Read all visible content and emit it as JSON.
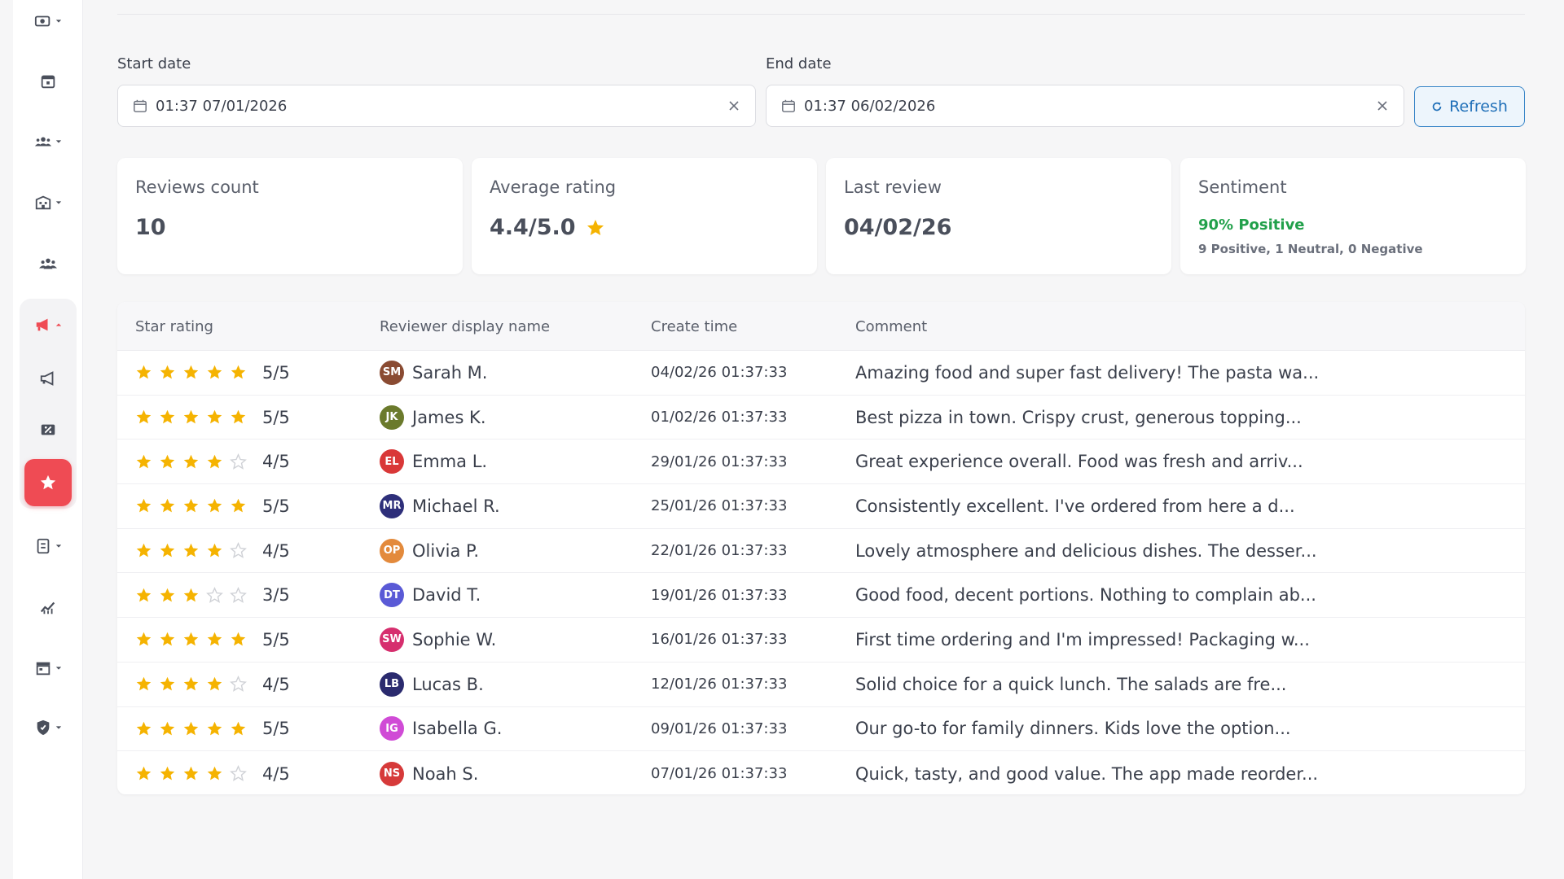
{
  "sidebar": {
    "items": [
      {
        "icon": "money-icon",
        "caret": true
      },
      {
        "icon": "calendar-icon",
        "caret": false
      },
      {
        "icon": "customers-icon",
        "caret": true
      },
      {
        "icon": "building-icon",
        "caret": true
      },
      {
        "icon": "team-icon",
        "caret": false
      },
      {
        "icon": "megaphone-icon",
        "caret": true
      },
      {
        "icon": "announcement-icon",
        "caret": false
      },
      {
        "icon": "discount-icon",
        "caret": false
      },
      {
        "icon": "star-icon",
        "caret": false,
        "active": true
      },
      {
        "icon": "document-icon",
        "caret": true
      },
      {
        "icon": "analytics-icon",
        "caret": false
      },
      {
        "icon": "store-icon",
        "caret": true
      },
      {
        "icon": "shield-icon",
        "caret": true
      }
    ],
    "active_color": "#ef4b54"
  },
  "filters": {
    "start_label": "Start date",
    "start_value": "01:37 07/01/2026",
    "end_label": "End date",
    "end_value": "01:37 06/02/2026",
    "refresh_label": "Refresh"
  },
  "cards": {
    "reviews_count": {
      "label": "Reviews count",
      "value": "10"
    },
    "average_rating": {
      "label": "Average rating",
      "value": "4.4/5.0"
    },
    "last_review": {
      "label": "Last review",
      "value": "04/02/26"
    },
    "sentiment": {
      "label": "Sentiment",
      "positive": "90% Positive",
      "breakdown": "9 Positive, 1 Neutral, 0 Negative"
    }
  },
  "table": {
    "headers": {
      "rating": "Star rating",
      "reviewer": "Reviewer display name",
      "time": "Create time",
      "comment": "Comment"
    },
    "rows": [
      {
        "stars": 5,
        "rating": "5/5",
        "initials": "SM",
        "color": "#8a4b32",
        "name": "Sarah M.",
        "time": "04/02/26 01:37:33",
        "comment": "Amazing food and super fast delivery! The pasta wa..."
      },
      {
        "stars": 5,
        "rating": "5/5",
        "initials": "JK",
        "color": "#6b7a2c",
        "name": "James K.",
        "time": "01/02/26 01:37:33",
        "comment": "Best pizza in town. Crispy crust, generous topping..."
      },
      {
        "stars": 4,
        "rating": "4/5",
        "initials": "EL",
        "color": "#d93838",
        "name": "Emma L.",
        "time": "29/01/26 01:37:33",
        "comment": "Great experience overall. Food was fresh and arriv..."
      },
      {
        "stars": 5,
        "rating": "5/5",
        "initials": "MR",
        "color": "#2e2f7a",
        "name": "Michael R.",
        "time": "25/01/26 01:37:33",
        "comment": "Consistently excellent. I've ordered from here a d..."
      },
      {
        "stars": 4,
        "rating": "4/5",
        "initials": "OP",
        "color": "#e38a3c",
        "name": "Olivia P.",
        "time": "22/01/26 01:37:33",
        "comment": "Lovely atmosphere and delicious dishes. The desser..."
      },
      {
        "stars": 3,
        "rating": "3/5",
        "initials": "DT",
        "color": "#5a5ad6",
        "name": "David T.",
        "time": "19/01/26 01:37:33",
        "comment": "Good food, decent portions. Nothing to complain ab..."
      },
      {
        "stars": 5,
        "rating": "5/5",
        "initials": "SW",
        "color": "#d62f6e",
        "name": "Sophie W.",
        "time": "16/01/26 01:37:33",
        "comment": "First time ordering and I'm impressed! Packaging w..."
      },
      {
        "stars": 4,
        "rating": "4/5",
        "initials": "LB",
        "color": "#2a2a6e",
        "name": "Lucas B.",
        "time": "12/01/26 01:37:33",
        "comment": "Solid choice for a quick lunch. The salads are fre..."
      },
      {
        "stars": 5,
        "rating": "5/5",
        "initials": "IG",
        "color": "#d04bd6",
        "name": "Isabella G.",
        "time": "09/01/26 01:37:33",
        "comment": "Our go-to for family dinners. Kids love the option..."
      },
      {
        "stars": 4,
        "rating": "4/5",
        "initials": "NS",
        "color": "#d63a3a",
        "name": "Noah S.",
        "time": "07/01/26 01:37:33",
        "comment": "Quick, tasty, and good value. The app made reorder..."
      }
    ]
  },
  "colors": {
    "star": "#f5b301",
    "star_empty": "#cfd1d6",
    "positive": "#21a04a",
    "accent": "#1f6fb8"
  }
}
